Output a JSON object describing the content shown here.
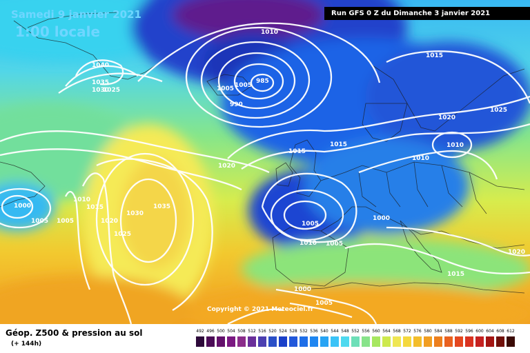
{
  "header": {
    "date": "Samedi 9 janvier 2021",
    "time": "1:00 locale",
    "run_info": "Run GFS 0 Z du Dimanche 3 janvier 2021",
    "copyright": "Copyright © 2021 Meteociel.fr"
  },
  "footer": {
    "title": "Géop. Z500 & pression au sol",
    "subtitle": "(+ 144h)"
  },
  "legend": {
    "values": [
      "492",
      "496",
      "500",
      "504",
      "508",
      "512",
      "516",
      "520",
      "524",
      "528",
      "532",
      "536",
      "540",
      "544",
      "548",
      "552",
      "556",
      "560",
      "564",
      "568",
      "572",
      "576",
      "580",
      "584",
      "588",
      "592",
      "596",
      "600",
      "604",
      "608",
      "612"
    ],
    "colors": [
      "#2d0a3a",
      "#4b0b56",
      "#63106b",
      "#7a1881",
      "#8a2c8a",
      "#6a2f9a",
      "#4b3fb0",
      "#2a4fc7",
      "#1a40c9",
      "#2157da",
      "#1e6ee8",
      "#1f86f1",
      "#28a4f4",
      "#3bc3f7",
      "#4fd9ef",
      "#6ddfb8",
      "#88e38a",
      "#a7e760",
      "#cde94d",
      "#efe653",
      "#f4d83e",
      "#f3bd2a",
      "#f19e21",
      "#ec7f1d",
      "#e9611f",
      "#e4471f",
      "#d93220",
      "#c52120",
      "#a41512",
      "#70100a",
      "#3a0a05"
    ]
  },
  "isobar_labels": [
    {
      "text": "1010"
    },
    {
      "text": "1015"
    },
    {
      "text": "985"
    },
    {
      "text": "990"
    },
    {
      "text": "1005"
    },
    {
      "text": "1005"
    },
    {
      "text": "1040"
    },
    {
      "text": "1035"
    },
    {
      "text": "1030"
    },
    {
      "text": "1025"
    },
    {
      "text": "1020"
    },
    {
      "text": "1025"
    },
    {
      "text": "1010"
    },
    {
      "text": "1015"
    },
    {
      "text": "1015"
    },
    {
      "text": "1020"
    },
    {
      "text": "1010"
    },
    {
      "text": "1000"
    },
    {
      "text": "1005"
    },
    {
      "text": "1010"
    },
    {
      "text": "1015"
    },
    {
      "text": "1020"
    },
    {
      "text": "1030"
    },
    {
      "text": "1035"
    },
    {
      "text": "1025"
    },
    {
      "text": "1000"
    },
    {
      "text": "1005"
    },
    {
      "text": "1005"
    },
    {
      "text": "1005"
    },
    {
      "text": "1000"
    },
    {
      "text": "1010"
    },
    {
      "text": "1005"
    },
    {
      "text": "1020"
    },
    {
      "text": "1015"
    }
  ]
}
